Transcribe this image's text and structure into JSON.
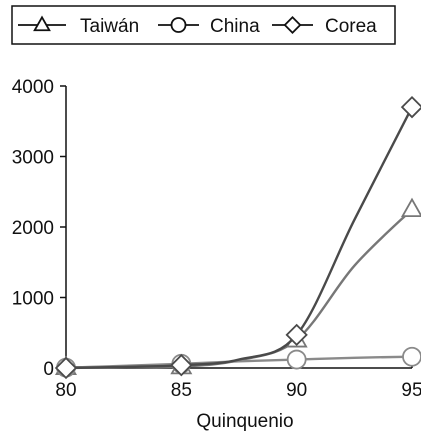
{
  "chart_data": {
    "type": "line",
    "title": "",
    "xlabel": "Quinquenio",
    "ylabel": "",
    "x": [
      80,
      85,
      90,
      95
    ],
    "x_tick_labels": [
      "80",
      "85",
      "90",
      "95"
    ],
    "y_tick_labels": [
      "0",
      "1000",
      "2000",
      "3000",
      "4000"
    ],
    "y_ticks": [
      0,
      1000,
      2000,
      3000,
      4000
    ],
    "xlim": [
      80,
      95
    ],
    "ylim": [
      0,
      4000
    ],
    "grid": false,
    "legend_placement": "top",
    "series": [
      {
        "name": "Taiwán",
        "marker": "triangle",
        "color": "#777777",
        "values": [
          10,
          20,
          400,
          2250
        ],
        "curve_points": [
          [
            80,
            10
          ],
          [
            82.5,
            15
          ],
          [
            85,
            20
          ],
          [
            87.5,
            110
          ],
          [
            90,
            400
          ],
          [
            92.5,
            1450
          ],
          [
            95,
            2250
          ]
        ]
      },
      {
        "name": "China",
        "marker": "circle",
        "color": "#8a8a8a",
        "values": [
          5,
          60,
          120,
          160
        ],
        "curve_points": [
          [
            80,
            5
          ],
          [
            82.5,
            30
          ],
          [
            85,
            60
          ],
          [
            87.5,
            95
          ],
          [
            90,
            120
          ],
          [
            92.5,
            145
          ],
          [
            95,
            160
          ]
        ]
      },
      {
        "name": "Corea",
        "marker": "diamond",
        "color": "#4a4a4a",
        "values": [
          0,
          40,
          470,
          3700
        ],
        "curve_points": [
          [
            80,
            0
          ],
          [
            82.5,
            15
          ],
          [
            85,
            40
          ],
          [
            87.5,
            120
          ],
          [
            90,
            470
          ],
          [
            92.5,
            2100
          ],
          [
            95,
            3700
          ]
        ]
      }
    ]
  }
}
